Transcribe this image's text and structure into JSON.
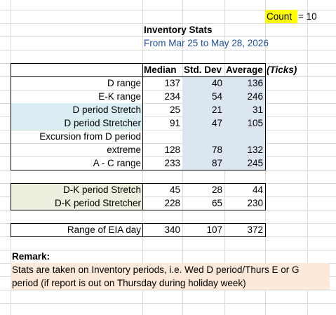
{
  "header": {
    "count_label": "Count",
    "count_value": "= 10",
    "title": "Inventory Stats",
    "subtitle": "From Mar 25 to May 28, 2026"
  },
  "table": {
    "columns": [
      "Median",
      "Std. Dev",
      "Average"
    ],
    "unit": "(Ticks)",
    "rows": [
      {
        "label": "D range",
        "values": [
          137,
          40,
          136
        ]
      },
      {
        "label": "E-K range",
        "values": [
          234,
          54,
          246
        ]
      },
      {
        "label": "D period Stretch",
        "values": [
          25,
          21,
          31
        ]
      },
      {
        "label": "D period Stretcher",
        "values": [
          91,
          47,
          105
        ]
      },
      {
        "label_lines": [
          "Excursion from D period",
          "extreme"
        ],
        "values": [
          128,
          78,
          132
        ]
      },
      {
        "label": "A - C range",
        "values": [
          233,
          87,
          245
        ]
      },
      {
        "label": "D-K period Stretch",
        "values": [
          45,
          28,
          44
        ]
      },
      {
        "label": "D-K period Stretcher",
        "values": [
          228,
          65,
          230
        ]
      },
      {
        "label": "Range of EIA day",
        "values": [
          340,
          107,
          372
        ]
      }
    ]
  },
  "remark": {
    "title": "Remark:",
    "lines": [
      "Stats are taken on Inventory periods, i.e. Wed D period/Thurs E or G",
      "period (if report is out on Thursday during holiday week)"
    ]
  }
}
